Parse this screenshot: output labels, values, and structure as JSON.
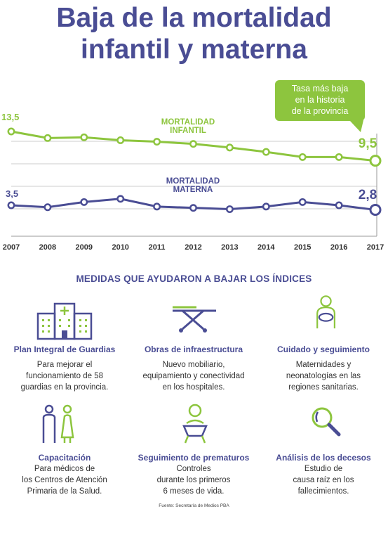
{
  "title": {
    "line1": "Baja de la mortalidad",
    "line2": "infantil y materna"
  },
  "callout": {
    "lines": [
      "Tasa más baja",
      "en la historia",
      "de la provincia"
    ]
  },
  "chart_data": {
    "type": "line",
    "x": [
      2007,
      2008,
      2009,
      2010,
      2011,
      2012,
      2013,
      2014,
      2015,
      2016,
      2017
    ],
    "series": [
      {
        "name": "MORTALIDAD INFANTIL",
        "color": "#8dc53e",
        "values": [
          13.5,
          12.6,
          12.7,
          12.3,
          12.1,
          11.8,
          11.3,
          10.7,
          10.0,
          10.0,
          9.5
        ],
        "labels": {
          "first": "13,5",
          "last": "9,5"
        }
      },
      {
        "name": "MORTALIDAD MATERNA",
        "color": "#4a4d94",
        "values": [
          3.5,
          3.2,
          4.0,
          4.5,
          3.3,
          3.1,
          2.9,
          3.3,
          4.0,
          3.5,
          2.8
        ],
        "labels": {
          "first": "3,5",
          "last": "2,8"
        }
      }
    ],
    "series_label_lines": [
      [
        "MORTALIDAD",
        "INFANTIL"
      ],
      [
        "MORTALIDAD",
        "MATERNA"
      ]
    ],
    "xlabel": "",
    "ylabel": "",
    "grid": true
  },
  "section_title": "MEDIDAS QUE AYUDARON A BAJAR LOS ÍNDICES",
  "measures": [
    {
      "icon": "hospital-icon",
      "title": "Plan Integral de Guardias",
      "desc": [
        "Para mejorar el",
        "funcionamiento de 58",
        "guardias en la provincia."
      ]
    },
    {
      "icon": "stretcher-icon",
      "title": "Obras de infraestructura",
      "desc": [
        "Nuevo mobiliario,",
        "equipamiento y conectividad",
        "en los hospitales."
      ]
    },
    {
      "icon": "mother-baby-icon",
      "title": "Cuidado y seguimiento",
      "desc": [
        "Maternidades y",
        "neonatologías en las",
        "regiones sanitarias."
      ]
    },
    {
      "icon": "doctors-icon",
      "title": "Capacitación",
      "desc": [
        "Para médicos de",
        "los Centros de Atención",
        "Primaria de la Salud."
      ]
    },
    {
      "icon": "baby-icon",
      "title": "Seguimiento de prematuros",
      "desc": [
        "Controles",
        "durante los primeros",
        "6 meses de vida."
      ]
    },
    {
      "icon": "magnifier-icon",
      "title": "Análisis de los decesos",
      "desc": [
        "Estudio de",
        "causa raíz en los",
        "fallecimientos."
      ]
    }
  ],
  "source": "Fuente: Secretaría de Medios PBA"
}
